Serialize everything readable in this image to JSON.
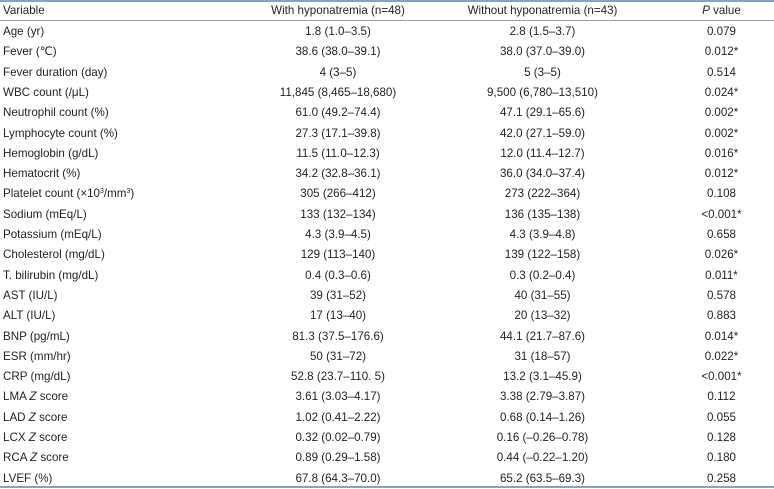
{
  "table": {
    "headers": {
      "variable": "Variable",
      "with": "With hyponatremia (n=48)",
      "without": "Without hyponatremia (n=43)",
      "p_italic": "P",
      "p_rest": " value"
    },
    "rows": [
      {
        "parts": [
          {
            "t": "Age (yr)"
          }
        ],
        "with": "1.8 (1.0–3.5)",
        "without": "2.8 (1.5–3.7)",
        "p": "0.079"
      },
      {
        "parts": [
          {
            "t": "Fever (℃)"
          }
        ],
        "with": "38.6 (38.0–39.1)",
        "without": "38.0 (37.0–39.0)",
        "p": "0.012*"
      },
      {
        "parts": [
          {
            "t": "Fever duration (day)"
          }
        ],
        "with": "4 (3–5)",
        "without": "5 (3–5)",
        "p": "0.514"
      },
      {
        "parts": [
          {
            "t": "WBC count (/μL)"
          }
        ],
        "with": "11,845 (8,465–18,680)",
        "without": "9,500 (6,780–13,510)",
        "p": "0.024*"
      },
      {
        "parts": [
          {
            "t": "Neutrophil count (%)"
          }
        ],
        "with": "61.0 (49.2–74.4)",
        "without": "47.1 (29.1–65.6)",
        "p": "0.002*"
      },
      {
        "parts": [
          {
            "t": "Lymphocyte count (%)"
          }
        ],
        "with": "27.3 (17.1–39.8)",
        "without": "42.0 (27.1–59.0)",
        "p": "0.002*"
      },
      {
        "parts": [
          {
            "t": "Hemoglobin (g/dL)"
          }
        ],
        "with": "11.5 (11.0–12.3)",
        "without": "12.0 (11.4–12.7)",
        "p": "0.016*"
      },
      {
        "parts": [
          {
            "t": "Hematocrit (%)"
          }
        ],
        "with": "34.2 (32.8–36.1)",
        "without": "36.0 (34.0–37.4)",
        "p": "0.012*"
      },
      {
        "parts": [
          {
            "t": "Platelet count (×10"
          },
          {
            "t": "3",
            "sup": true
          },
          {
            "t": "/mm"
          },
          {
            "t": "3",
            "sup": true
          },
          {
            "t": ")"
          }
        ],
        "with": "305 (266–412)",
        "without": "273 (222–364)",
        "p": "0.108"
      },
      {
        "parts": [
          {
            "t": "Sodium (mEq/L)"
          }
        ],
        "with": "133 (132–134)",
        "without": "136 (135–138)",
        "p": "<0.001*"
      },
      {
        "parts": [
          {
            "t": "Potassium (mEq/L)"
          }
        ],
        "with": "4.3 (3.9–4.5)",
        "without": "4.3 (3.9–4.8)",
        "p": "0.658"
      },
      {
        "parts": [
          {
            "t": "Cholesterol (mg/dL)"
          }
        ],
        "with": "129 (113–140)",
        "without": "139 (122–158)",
        "p": "0.026*"
      },
      {
        "parts": [
          {
            "t": "T. bilirubin (mg/dL)"
          }
        ],
        "with": "0.4 (0.3–0.6)",
        "without": "0.3 (0.2–0.4)",
        "p": "0.011*"
      },
      {
        "parts": [
          {
            "t": "AST (IU/L)"
          }
        ],
        "with": "39 (31–52)",
        "without": "40 (31–55)",
        "p": "0.578"
      },
      {
        "parts": [
          {
            "t": "ALT (IU/L)"
          }
        ],
        "with": "17 (13–40)",
        "without": "20 (13–32)",
        "p": "0.883"
      },
      {
        "parts": [
          {
            "t": "BNP (pg/mL)"
          }
        ],
        "with": "81.3 (37.5–176.6)",
        "without": "44.1 (21.7–87.6)",
        "p": "0.014*"
      },
      {
        "parts": [
          {
            "t": "ESR (mm/hr)"
          }
        ],
        "with": "50 (31–72)",
        "without": "31 (18–57)",
        "p": "0.022*"
      },
      {
        "parts": [
          {
            "t": "CRP (mg/dL)"
          }
        ],
        "with": "52.8 (23.7–110. 5)",
        "without": "13.2 (3.1–45.9)",
        "p": "<0.001*"
      },
      {
        "parts": [
          {
            "t": "LMA "
          },
          {
            "t": "Z",
            "i": true
          },
          {
            "t": " score"
          }
        ],
        "with": "3.61 (3.03–4.17)",
        "without": "3.38 (2.79–3.87)",
        "p": "0.112"
      },
      {
        "parts": [
          {
            "t": "LAD "
          },
          {
            "t": "Z",
            "i": true
          },
          {
            "t": " score"
          }
        ],
        "with": "1.02 (0.41–2.22)",
        "without": "0.68 (0.14–1.26)",
        "p": "0.055"
      },
      {
        "parts": [
          {
            "t": "LCX "
          },
          {
            "t": "Z",
            "i": true
          },
          {
            "t": " score"
          }
        ],
        "with": "0.32 (0.02–0.79)",
        "without": "0.16 (–0.26–0.78)",
        "p": "0.128"
      },
      {
        "parts": [
          {
            "t": "RCA "
          },
          {
            "t": "Z",
            "i": true
          },
          {
            "t": " score"
          }
        ],
        "with": "0.89 (0.29–1.58)",
        "without": "0.44 (–0.22–1.20)",
        "p": "0.180"
      },
      {
        "parts": [
          {
            "t": "LVEF (%)"
          }
        ],
        "with": "67.8 (64.3–70.0)",
        "without": "65.2 (63.5–69.3)",
        "p": "0.258"
      }
    ]
  },
  "colors": {
    "rule": "#7fa6c9",
    "text": "#231f20"
  }
}
